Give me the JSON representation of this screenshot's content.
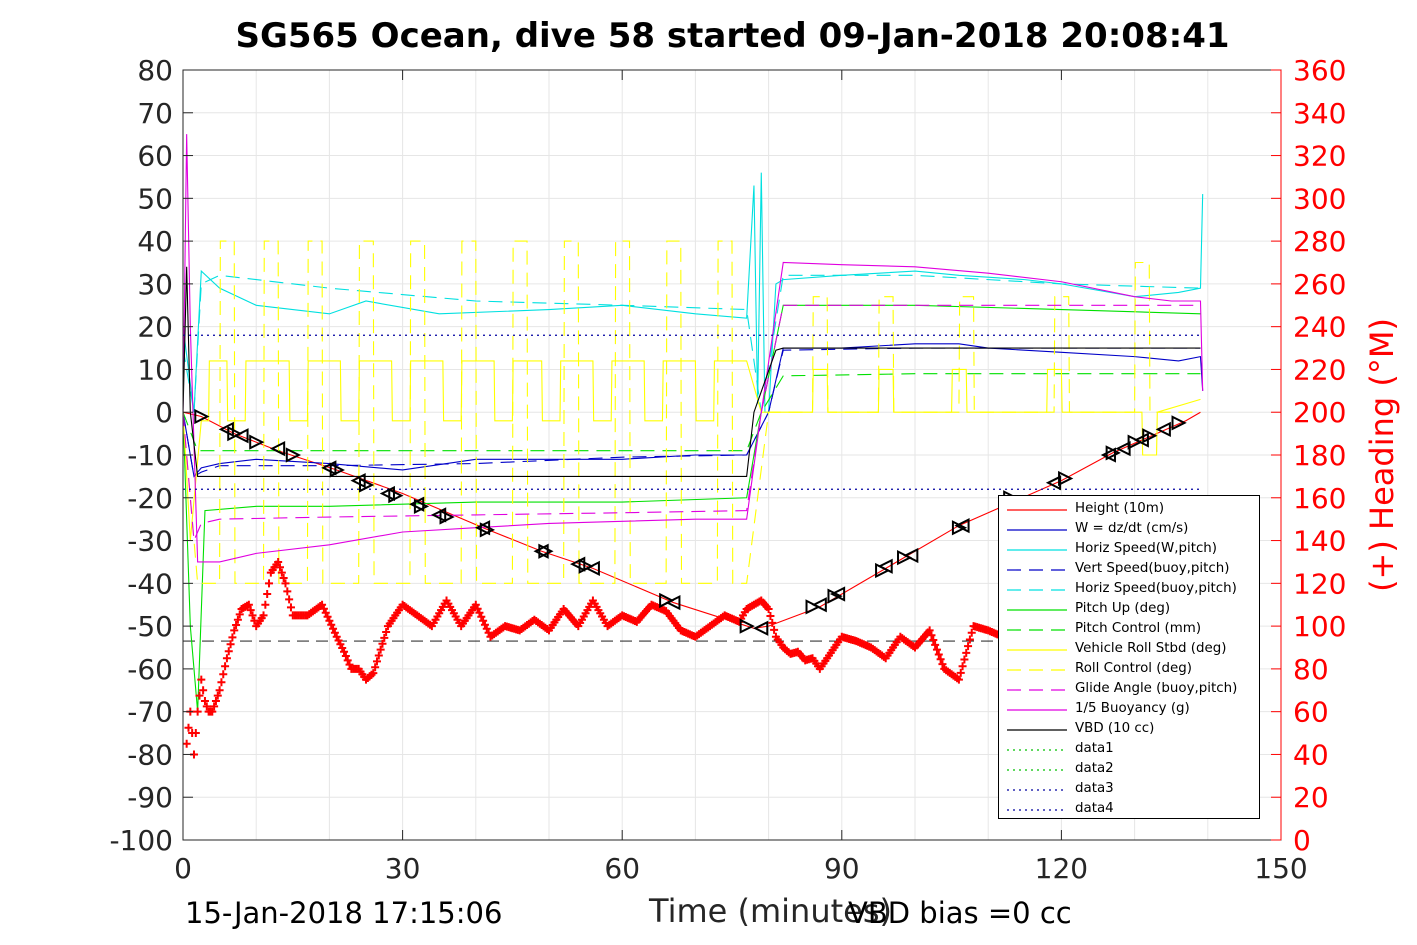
{
  "chart_data": {
    "type": "line",
    "title": "SG565 Ocean, dive 58 started 09-Jan-2018 20:08:41",
    "xlabel": "Time (minutes)",
    "ylabel_left": "",
    "ylabel_right": "(+) Heading (°M)",
    "xlim": [
      0,
      150
    ],
    "ylim_left": [
      -100,
      80
    ],
    "ylim_right": [
      0,
      360
    ],
    "x_ticks": [
      "0",
      "30",
      "60",
      "90",
      "120",
      "150"
    ],
    "y_ticks_left": [
      "80",
      "70",
      "60",
      "50",
      "40",
      "30",
      "20",
      "10",
      "0",
      "-10",
      "-20",
      "-30",
      "-40",
      "-50",
      "-60",
      "-70",
      "-80",
      "-90",
      "-100"
    ],
    "y_ticks_right": [
      "360",
      "340",
      "320",
      "300",
      "280",
      "260",
      "240",
      "220",
      "200",
      "180",
      "160",
      "140",
      "120",
      "100",
      "80",
      "60",
      "40",
      "20",
      "0"
    ],
    "grid": true,
    "legend_position": "bottom-right",
    "colors": {
      "heading": "#ff0000",
      "right_axis": "#ff0000"
    },
    "series": [
      {
        "name": "Height (10m)",
        "color": "#ff0000",
        "style": "solid",
        "x": [
          0,
          2.5,
          7,
          13,
          21,
          30,
          41,
          49,
          56,
          67,
          78,
          80,
          87,
          96,
          106,
          120,
          127,
          137,
          139
        ],
        "y": [
          0,
          -1,
          -5,
          -9,
          -13.5,
          -19,
          -27,
          -32.5,
          -36.5,
          -44.5,
          -50.5,
          -50,
          -45.5,
          -36.5,
          -26.5,
          -16,
          -9.5,
          -2,
          0
        ]
      },
      {
        "name": "W = dz/dt (cm/s)",
        "color": "#0000c8",
        "style": "solid",
        "x": [
          0,
          1.5,
          2.5,
          5,
          10,
          20,
          30,
          40,
          50,
          60,
          70,
          77,
          80,
          82,
          90,
          100,
          106,
          110,
          120,
          130,
          136,
          139,
          139.3
        ],
        "y": [
          0,
          -15,
          -13,
          -12,
          -11,
          -12,
          -13.5,
          -11,
          -11,
          -11,
          -10,
          -10,
          0,
          15,
          15,
          16,
          16,
          15,
          14,
          13,
          12,
          13,
          5
        ]
      },
      {
        "name": "Horiz Speed(W,pitch)",
        "color": "#00e0e0",
        "style": "solid",
        "x": [
          0,
          1.5,
          2.5,
          5,
          10,
          20,
          25,
          35,
          50,
          60,
          70,
          77,
          78,
          78.5,
          79,
          79.5,
          80,
          81,
          82,
          90,
          100,
          106,
          115,
          120,
          130,
          136,
          139,
          139.3
        ],
        "y": [
          20,
          0,
          33,
          29,
          25,
          23,
          26,
          23,
          24,
          25,
          23,
          22,
          53,
          2,
          56,
          0,
          0,
          30,
          31,
          32,
          33,
          32,
          31,
          30,
          27,
          28,
          29,
          51
        ]
      },
      {
        "name": "Vert Speed(buoy,pitch)",
        "color": "#0000c8",
        "style": "dashed",
        "x": [
          0,
          1.5,
          2.5,
          5,
          20,
          40,
          60,
          77,
          80,
          82,
          100,
          120,
          139
        ],
        "y": [
          0,
          -15,
          -14,
          -12.5,
          -12.5,
          -12,
          -10.5,
          -10,
          0,
          14.5,
          15,
          15,
          15
        ]
      },
      {
        "name": "Horiz Speed(buoy,pitch)",
        "color": "#00e0e0",
        "style": "dashed",
        "x": [
          0,
          1.5,
          2.5,
          5,
          20,
          40,
          60,
          77,
          79,
          82,
          100,
          120,
          139
        ],
        "y": [
          15,
          0,
          30,
          32,
          29,
          26,
          25,
          24,
          0,
          32,
          32,
          30,
          29
        ]
      },
      {
        "name": "Pitch Up (deg)",
        "color": "#00e000",
        "style": "solid",
        "x": [
          0,
          1,
          2,
          3,
          10,
          20,
          40,
          60,
          77,
          79,
          82,
          100,
          120,
          139
        ],
        "y": [
          0,
          -50,
          -70,
          -23,
          -22,
          -22,
          -21,
          -21,
          -20,
          0,
          25,
          25,
          24,
          23
        ]
      },
      {
        "name": "Pitch Control (mm)",
        "color": "#00e000",
        "style": "dashed",
        "x": [
          0,
          2,
          4,
          20,
          40,
          60,
          77,
          79,
          82,
          100,
          120,
          139
        ],
        "y": [
          0,
          -9,
          -9,
          -9,
          -9,
          -9,
          -9,
          0,
          8.5,
          9,
          9,
          9
        ]
      },
      {
        "name": "Vehicle Roll Stbd (deg)",
        "color": "#ffff00",
        "style": "solid",
        "x": [
          0,
          1,
          2.5,
          3.5,
          3.6,
          6,
          6.1,
          8.5,
          8.6,
          14.5,
          14.6,
          17,
          17.1,
          21.5,
          21.6,
          24,
          24.1,
          28.5,
          28.6,
          31,
          31.1,
          35.5,
          35.6,
          38,
          38.1,
          42.5,
          42.6,
          45,
          45.1,
          49,
          49.1,
          51.5,
          51.6,
          56,
          56.1,
          58.5,
          58.6,
          63,
          63.1,
          65.5,
          65.6,
          70,
          70.1,
          72.5,
          72.6,
          77,
          79,
          82,
          86,
          86.1,
          88,
          88.1,
          95,
          95.1,
          97,
          97.1,
          105,
          105.1,
          107,
          107.1,
          118,
          118.1,
          120,
          120.1,
          131,
          131.1,
          133,
          133.1,
          139
        ],
        "y": [
          0,
          -30,
          -2,
          -2,
          12,
          12,
          -2,
          -2,
          12,
          12,
          -2,
          -2,
          12,
          12,
          -2,
          -2,
          12,
          12,
          -2,
          -2,
          12,
          12,
          -2,
          -2,
          12,
          12,
          -2,
          -2,
          12,
          12,
          -2,
          -2,
          12,
          12,
          -2,
          -2,
          12,
          12,
          -2,
          -2,
          12,
          12,
          -2,
          -2,
          12,
          12,
          0,
          0,
          0,
          10,
          10,
          0,
          0,
          10,
          10,
          0,
          0,
          10,
          10,
          0,
          0,
          10,
          10,
          0,
          0,
          -10,
          -10,
          0,
          3
        ]
      },
      {
        "name": "Roll Control (deg)",
        "color": "#ffff00",
        "style": "dashed",
        "x": [
          0,
          2,
          5,
          5.1,
          7,
          7.1,
          11,
          11.1,
          13,
          13.1,
          17,
          17.1,
          19,
          19.1,
          24,
          24.1,
          26,
          26.1,
          31,
          31.1,
          33,
          33.1,
          38,
          38.1,
          40,
          40.1,
          45,
          45.1,
          47,
          47.1,
          52,
          52.1,
          54,
          54.1,
          59,
          59.1,
          61,
          61.1,
          66,
          66.1,
          68,
          68.1,
          73,
          73.1,
          75,
          75.1,
          77,
          80,
          86,
          86.1,
          88,
          88.1,
          95,
          95.1,
          97,
          97.1,
          106,
          106.1,
          108,
          108.1,
          119,
          119.1,
          121,
          121.1,
          130,
          130.1,
          132,
          132.1,
          139
        ],
        "y": [
          0,
          -40,
          -40,
          40,
          40,
          -40,
          -40,
          40,
          40,
          -40,
          -40,
          40,
          40,
          -40,
          -40,
          40,
          40,
          -40,
          -40,
          40,
          40,
          -40,
          -40,
          40,
          40,
          -40,
          -40,
          40,
          40,
          -40,
          -40,
          40,
          40,
          -40,
          -40,
          40,
          40,
          -40,
          -40,
          40,
          40,
          -40,
          -40,
          40,
          40,
          -40,
          -40,
          0,
          0,
          27,
          27,
          0,
          0,
          27,
          27,
          0,
          0,
          27,
          27,
          0,
          0,
          27,
          27,
          0,
          0,
          35,
          35,
          0,
          0
        ]
      },
      {
        "name": "Glide Angle (buoy,pitch)",
        "color": "#e000e0",
        "style": "dashed",
        "x": [
          0,
          1.5,
          2.5,
          5,
          20,
          40,
          60,
          77,
          79,
          82,
          100,
          120,
          139
        ],
        "y": [
          0,
          -30,
          -26,
          -25,
          -24.5,
          -24,
          -23.5,
          -23,
          0,
          25,
          25,
          25,
          25
        ]
      },
      {
        "name": "1/5 Buoyancy (g)",
        "color": "#e000e0",
        "style": "solid",
        "x": [
          0,
          0.5,
          1,
          2,
          5,
          10,
          20,
          30,
          40,
          50,
          60,
          70,
          77,
          79,
          82,
          90,
          100,
          110,
          120,
          130,
          135,
          139,
          139.3
        ],
        "y": [
          0,
          65,
          20,
          -35,
          -35,
          -33,
          -31,
          -28,
          -27,
          -26,
          -25.5,
          -25,
          -25,
          0,
          35,
          34.5,
          34,
          32.5,
          30.5,
          27,
          26,
          26,
          5
        ]
      },
      {
        "name": "VBD (10 cc)",
        "color": "#000000",
        "style": "solid",
        "x": [
          0,
          0.5,
          1,
          2,
          5,
          77,
          78,
          81,
          82,
          139
        ],
        "y": [
          0,
          34,
          0,
          -15,
          -15,
          -15,
          0,
          14.5,
          15,
          15
        ]
      },
      {
        "name": "data1",
        "color": "#00c000",
        "style": "dotted",
        "x": [],
        "y": []
      },
      {
        "name": "data2",
        "color": "#00c000",
        "style": "dotted",
        "x": [],
        "y": []
      },
      {
        "name": "data3",
        "color": "#0000a0",
        "style": "dotted",
        "x": [
          0,
          139
        ],
        "y": [
          -18,
          -18
        ]
      },
      {
        "name": "data4",
        "color": "#0000a0",
        "style": "dotted",
        "x": [
          0,
          139
        ],
        "y": [
          18,
          18
        ]
      }
    ],
    "heading_series": {
      "axis": "right",
      "color": "#ff0000",
      "marker": "+",
      "x": [
        0.5,
        1,
        1.5,
        2,
        2.5,
        3,
        3.5,
        4,
        5,
        6,
        7,
        8,
        9,
        10,
        11,
        12,
        13,
        14,
        15,
        17,
        19,
        21,
        22,
        23,
        24,
        25,
        26,
        28,
        30,
        32,
        34,
        36,
        38,
        40,
        42,
        44,
        46,
        48,
        50,
        52,
        54,
        56,
        58,
        60,
        62,
        64,
        66,
        68,
        70,
        72,
        74,
        76,
        77,
        78,
        79,
        80,
        81,
        82,
        83,
        84,
        85,
        86,
        87,
        88,
        89,
        90,
        92,
        94,
        96,
        98,
        100,
        102,
        104,
        106,
        108,
        110,
        112
      ],
      "y": [
        45,
        60,
        40,
        60,
        75,
        65,
        60,
        60,
        70,
        85,
        98,
        108,
        110,
        100,
        105,
        125,
        130,
        120,
        105,
        105,
        110,
        95,
        88,
        80,
        80,
        75,
        78,
        100,
        110,
        105,
        100,
        112,
        100,
        110,
        95,
        100,
        98,
        103,
        98,
        108,
        100,
        112,
        100,
        105,
        102,
        110,
        107,
        98,
        95,
        100,
        105,
        102,
        108,
        110,
        112,
        108,
        95,
        90,
        87,
        88,
        84,
        85,
        80,
        85,
        90,
        95,
        93,
        90,
        85,
        95,
        90,
        98,
        80,
        75,
        100,
        98,
        95
      ]
    },
    "reference_lines": [
      {
        "axis": "right",
        "y": 93,
        "x": [
          0,
          139
        ],
        "color": "#000000",
        "style": "dashed"
      }
    ],
    "triangle_markers": {
      "color": "#000000",
      "x": [
        2.5,
        6,
        7,
        8,
        10,
        13,
        15,
        20,
        21,
        24,
        25,
        28,
        29,
        32,
        32.5,
        35,
        36,
        41,
        41.5,
        49,
        49.5,
        54,
        55,
        56,
        66,
        67,
        77,
        79,
        86,
        87,
        89,
        89.5,
        95.5,
        96,
        98.5,
        99.5,
        106,
        106.5,
        113,
        119,
        120.5,
        126.5,
        127,
        128.5,
        130,
        131,
        132,
        134,
        136
      ],
      "y": [
        -1,
        -4,
        -5,
        -5.5,
        -7,
        -8.5,
        -10,
        -13,
        -13.5,
        -16,
        -17,
        -19,
        -19.5,
        -21.5,
        -22,
        -24,
        -24.5,
        -27,
        -27.5,
        -32.5,
        -32.5,
        -35.5,
        -36,
        -36.5,
        -44,
        -44.5,
        -50,
        -50.5,
        -45.5,
        -45,
        -43,
        -42.5,
        -37,
        -36,
        -34,
        -33.5,
        -27,
        -26.5,
        -20,
        -16.5,
        -15.5,
        -10,
        -9.5,
        -8.5,
        -7,
        -6.5,
        -5.5,
        -4,
        -2.5
      ]
    }
  },
  "footer": {
    "timestamp": "15-Jan-2018 17:15:06",
    "vbd_bias": "VBD bias =0 cc"
  }
}
